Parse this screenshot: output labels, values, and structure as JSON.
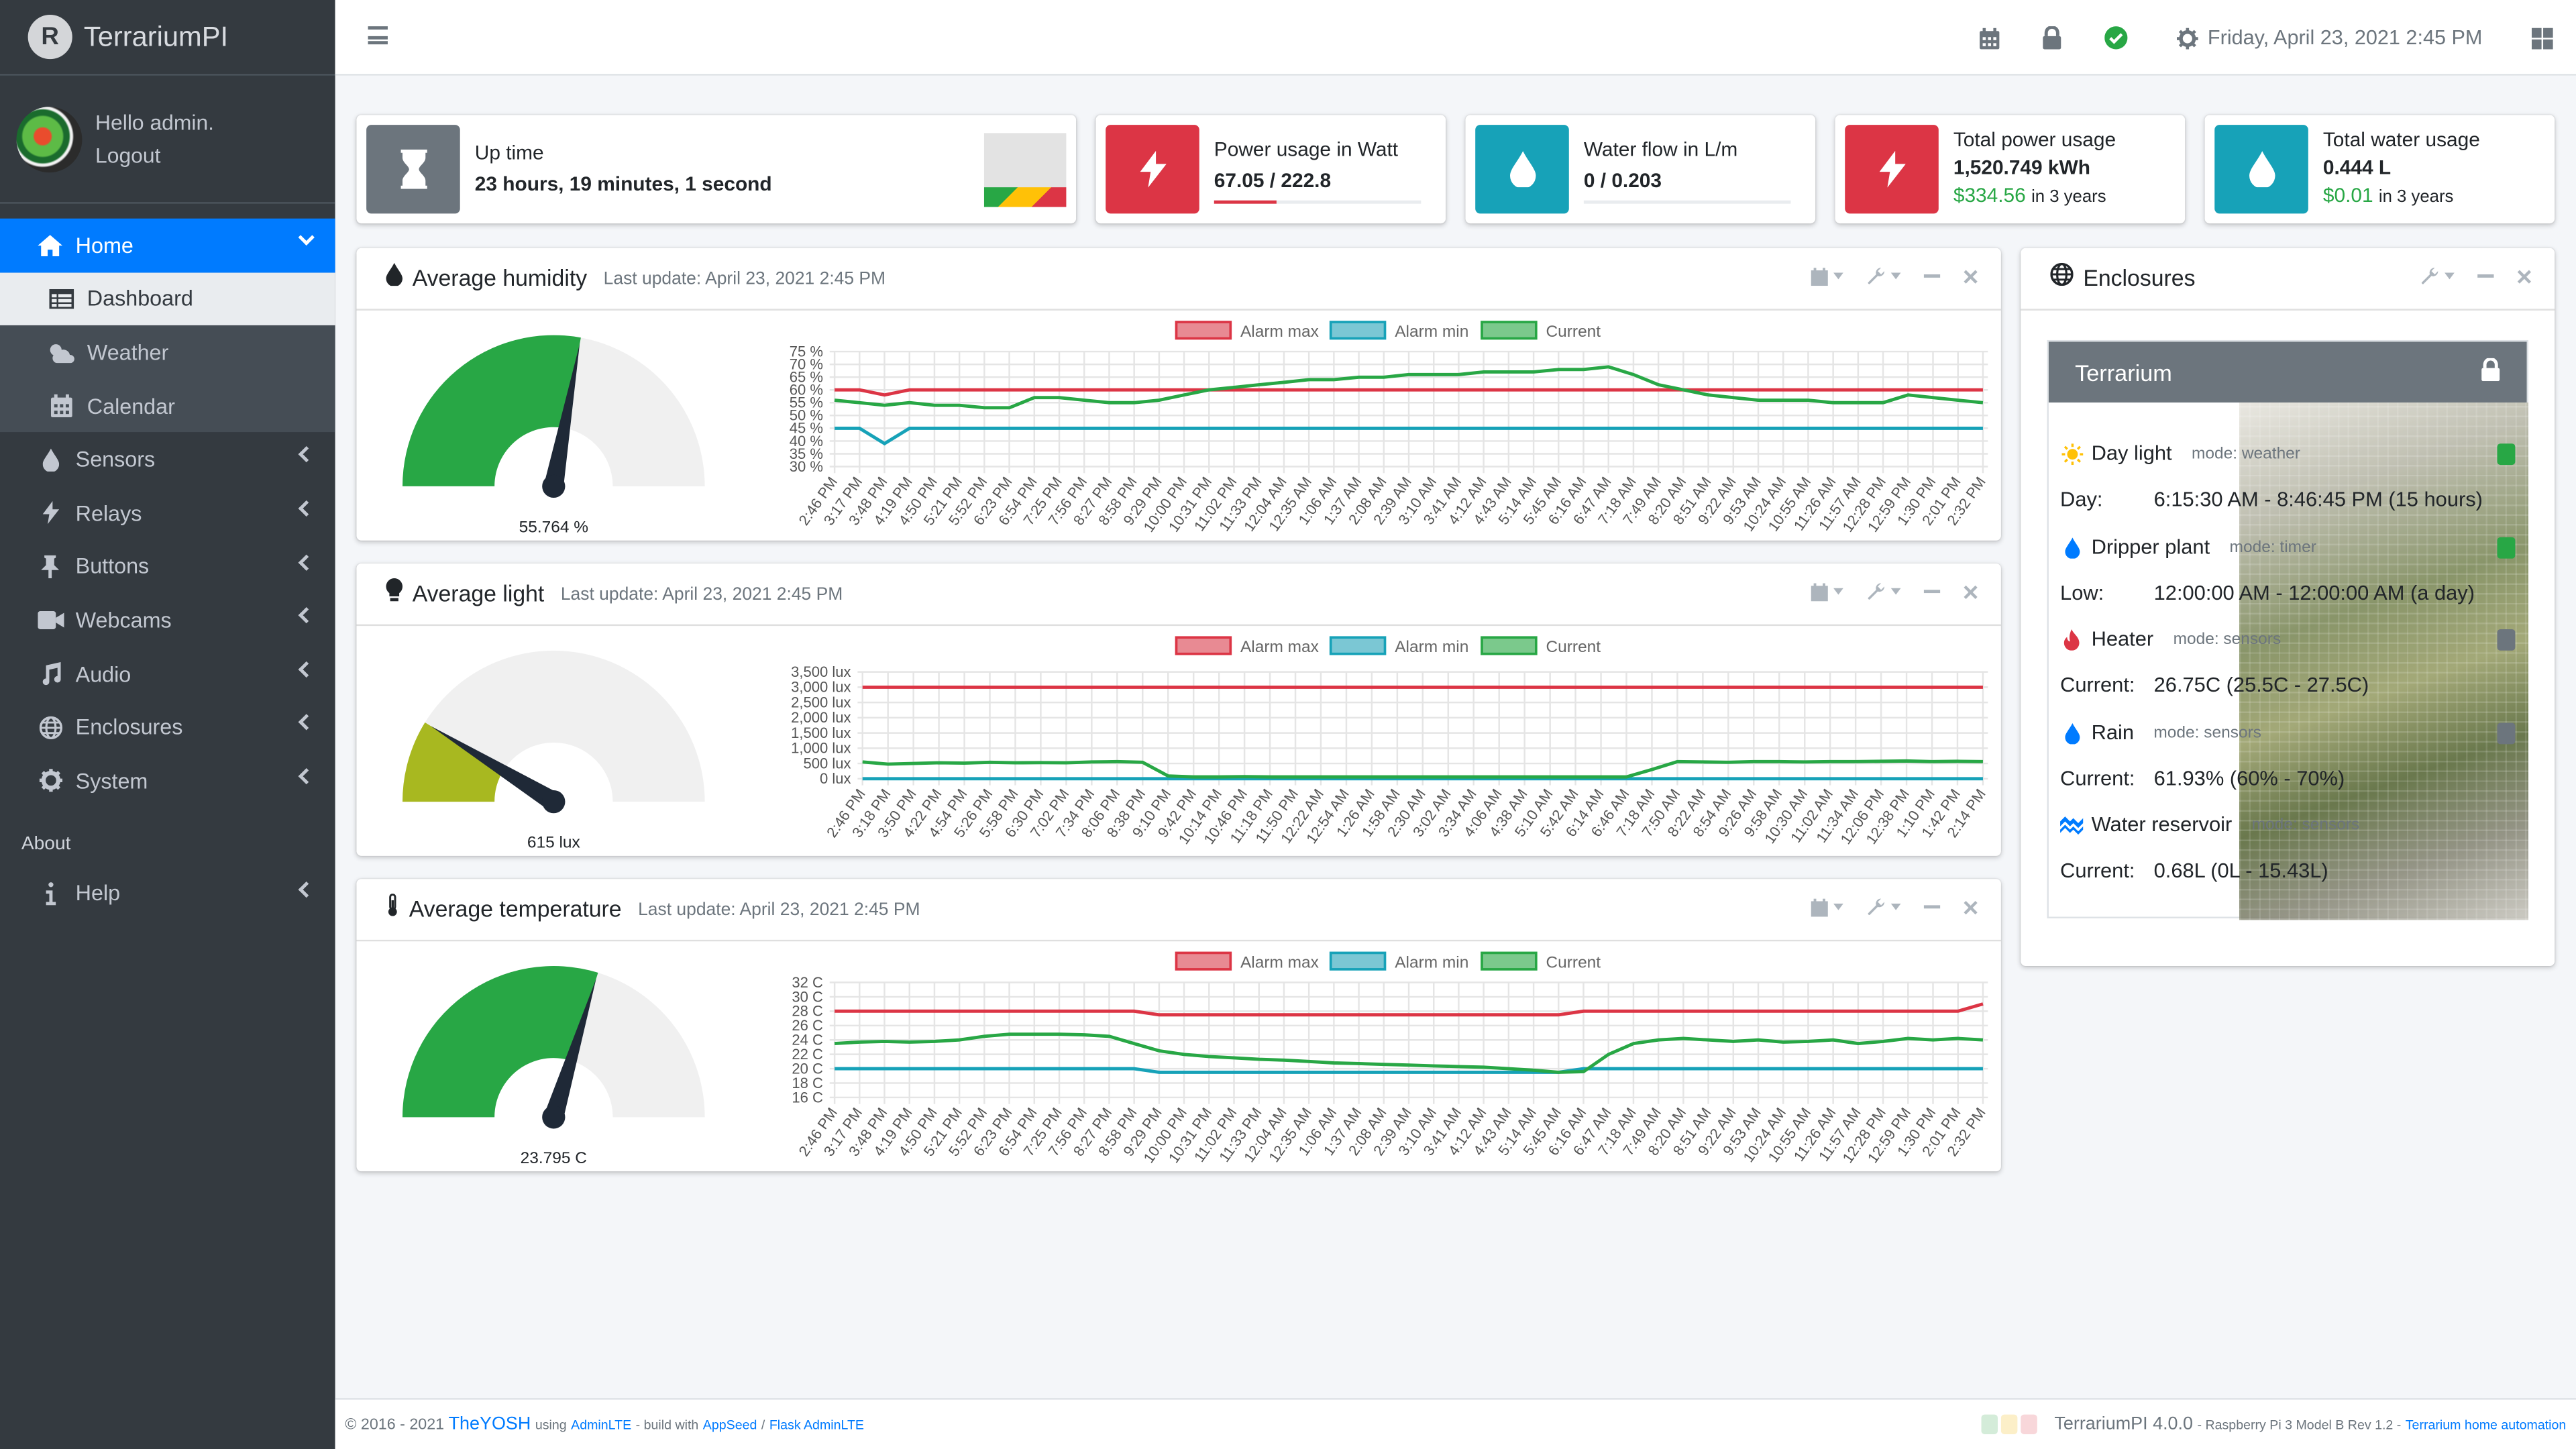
{
  "app": {
    "name": "TerrariumPI",
    "logo_letter": "R"
  },
  "user": {
    "greeting": "Hello admin.",
    "logout": "Logout"
  },
  "sidebar": {
    "home": "Home",
    "sub": [
      {
        "label": "Dashboard"
      },
      {
        "label": "Weather"
      },
      {
        "label": "Calendar"
      }
    ],
    "items": [
      {
        "label": "Sensors"
      },
      {
        "label": "Relays"
      },
      {
        "label": "Buttons"
      },
      {
        "label": "Webcams"
      },
      {
        "label": "Audio"
      },
      {
        "label": "Enclosures"
      },
      {
        "label": "System"
      }
    ],
    "about_header": "About",
    "help": "Help"
  },
  "topbar": {
    "datetime": "Friday, April 23, 2021 2:45 PM"
  },
  "infoboxes": {
    "uptime": {
      "label": "Up time",
      "value": "23 hours, 19 minutes, 1 second"
    },
    "power": {
      "label": "Power usage in Watt",
      "value": "67.05 / 222.8",
      "fraction": 0.3
    },
    "water": {
      "label": "Water flow in L/m",
      "value": "0 / 0.203",
      "fraction": 0
    },
    "total_power": {
      "label": "Total power usage",
      "value": "1,520.749 kWh",
      "cost": "$334.56",
      "period": "in 3 years"
    },
    "total_water": {
      "label": "Total water usage",
      "value": "0.444 L",
      "cost": "$0.01",
      "period": "in 3 years"
    }
  },
  "legend": {
    "max": "Alarm max",
    "min": "Alarm min",
    "current": "Current"
  },
  "colors": {
    "red": "#dc3545",
    "teal": "#17a2b8",
    "green": "#28a745",
    "primary": "#007bff",
    "olive": "#a8b820"
  },
  "chart_data": [
    {
      "type": "line",
      "title": "Average humidity",
      "subtitle": "Last update: April 23, 2021 2:45 PM",
      "gauge_value": 55.764,
      "gauge_max": 100,
      "gauge_label": "55.764 %",
      "y_ticks": [
        "75 %",
        "70 %",
        "65 %",
        "60 %",
        "55 %",
        "50 %",
        "45 %",
        "40 %",
        "35 %",
        "30 %"
      ],
      "ylim": [
        30,
        75
      ],
      "x_ticks": [
        "2:46 PM",
        "3:17 PM",
        "3:48 PM",
        "4:19 PM",
        "4:50 PM",
        "5:21 PM",
        "5:52 PM",
        "6:23 PM",
        "6:54 PM",
        "7:25 PM",
        "7:56 PM",
        "8:27 PM",
        "8:58 PM",
        "9:29 PM",
        "10:00 PM",
        "10:31 PM",
        "11:02 PM",
        "11:33 PM",
        "12:04 AM",
        "12:35 AM",
        "1:06 AM",
        "1:37 AM",
        "2:08 AM",
        "2:39 AM",
        "3:10 AM",
        "3:41 AM",
        "4:12 AM",
        "4:43 AM",
        "5:14 AM",
        "5:45 AM",
        "6:16 AM",
        "6:47 AM",
        "7:18 AM",
        "7:49 AM",
        "8:20 AM",
        "8:51 AM",
        "9:22 AM",
        "9:53 AM",
        "10:24 AM",
        "10:55 AM",
        "11:26 AM",
        "11:57 AM",
        "12:28 PM",
        "12:59 PM",
        "1:30 PM",
        "2:01 PM",
        "2:32 PM"
      ],
      "series": [
        {
          "name": "Alarm max",
          "values": [
            60,
            60,
            58,
            60,
            60,
            60,
            60,
            60,
            60,
            60,
            60,
            60,
            60,
            60,
            60,
            60,
            60,
            60,
            60,
            60,
            60,
            60,
            60,
            60,
            60,
            60,
            60,
            60,
            60,
            60,
            60,
            60,
            60,
            60,
            60,
            60,
            60,
            60,
            60,
            60,
            60,
            60,
            60,
            60,
            60,
            60,
            60
          ]
        },
        {
          "name": "Alarm min",
          "values": [
            45,
            45,
            39,
            45,
            45,
            45,
            45,
            45,
            45,
            45,
            45,
            45,
            45,
            45,
            45,
            45,
            45,
            45,
            45,
            45,
            45,
            45,
            45,
            45,
            45,
            45,
            45,
            45,
            45,
            45,
            45,
            45,
            45,
            45,
            45,
            45,
            45,
            45,
            45,
            45,
            45,
            45,
            45,
            45,
            45,
            45,
            45
          ]
        },
        {
          "name": "Current",
          "values": [
            56,
            55,
            54,
            55,
            54,
            54,
            53,
            53,
            57,
            57,
            56,
            55,
            55,
            56,
            58,
            60,
            61,
            62,
            63,
            64,
            64,
            65,
            65,
            66,
            66,
            66,
            67,
            67,
            67,
            68,
            68,
            69,
            66,
            62,
            60,
            58,
            57,
            56,
            56,
            56,
            55,
            55,
            55,
            58,
            57,
            56,
            55
          ]
        }
      ]
    },
    {
      "type": "line",
      "title": "Average light",
      "subtitle": "Last update: April 23, 2021 2:45 PM",
      "gauge_value": 615,
      "gauge_max": 3500,
      "gauge_label": "615 lux",
      "y_ticks": [
        "3,500 lux",
        "3,000 lux",
        "2,500 lux",
        "2,000 lux",
        "1,500 lux",
        "1,000 lux",
        "500 lux",
        "0 lux"
      ],
      "ylim": [
        0,
        3500
      ],
      "x_ticks": [
        "2:46 PM",
        "3:18 PM",
        "3:50 PM",
        "4:22 PM",
        "4:54 PM",
        "5:26 PM",
        "5:58 PM",
        "6:30 PM",
        "7:02 PM",
        "7:34 PM",
        "8:06 PM",
        "8:38 PM",
        "9:10 PM",
        "9:42 PM",
        "10:14 PM",
        "10:46 PM",
        "11:18 PM",
        "11:50 PM",
        "12:22 AM",
        "12:54 AM",
        "1:26 AM",
        "1:58 AM",
        "2:30 AM",
        "3:02 AM",
        "3:34 AM",
        "4:06 AM",
        "4:38 AM",
        "5:10 AM",
        "5:42 AM",
        "6:14 AM",
        "6:46 AM",
        "7:18 AM",
        "7:50 AM",
        "8:22 AM",
        "8:54 AM",
        "9:26 AM",
        "9:58 AM",
        "10:30 AM",
        "11:02 AM",
        "11:34 AM",
        "12:06 PM",
        "12:38 PM",
        "1:10 PM",
        "1:42 PM",
        "2:14 PM"
      ],
      "series": [
        {
          "name": "Alarm max",
          "values": [
            3000,
            3000,
            3000,
            3000,
            3000,
            3000,
            3000,
            3000,
            3000,
            3000,
            3000,
            3000,
            3000,
            3000,
            3000,
            3000,
            3000,
            3000,
            3000,
            3000,
            3000,
            3000,
            3000,
            3000,
            3000,
            3000,
            3000,
            3000,
            3000,
            3000,
            3000,
            3000,
            3000,
            3000,
            3000,
            3000,
            3000,
            3000,
            3000,
            3000,
            3000,
            3000,
            3000,
            3000,
            3000
          ]
        },
        {
          "name": "Alarm min",
          "values": [
            0,
            0,
            0,
            0,
            0,
            0,
            0,
            0,
            0,
            0,
            0,
            0,
            0,
            0,
            0,
            0,
            0,
            0,
            0,
            0,
            0,
            0,
            0,
            0,
            0,
            0,
            0,
            0,
            0,
            0,
            0,
            0,
            0,
            0,
            0,
            0,
            0,
            0,
            0,
            0,
            0,
            0,
            0,
            0,
            0
          ]
        },
        {
          "name": "Current",
          "values": [
            550,
            480,
            500,
            520,
            510,
            540,
            520,
            530,
            520,
            550,
            560,
            540,
            90,
            60,
            60,
            70,
            60,
            60,
            60,
            60,
            60,
            60,
            60,
            60,
            60,
            60,
            60,
            60,
            60,
            60,
            60,
            300,
            560,
            550,
            540,
            560,
            560,
            550,
            560,
            560,
            570,
            580,
            560,
            570,
            560
          ]
        }
      ]
    },
    {
      "type": "line",
      "title": "Average temperature",
      "subtitle": "Last update: April 23, 2021 2:45 PM",
      "gauge_value": 23.795,
      "gauge_max": 40,
      "gauge_label": "23.795 C",
      "y_ticks": [
        "32 C",
        "30 C",
        "28 C",
        "26 C",
        "24 C",
        "22 C",
        "20 C",
        "18 C",
        "16 C"
      ],
      "ylim": [
        16,
        32
      ],
      "x_ticks": [
        "2:46 PM",
        "3:17 PM",
        "3:48 PM",
        "4:19 PM",
        "4:50 PM",
        "5:21 PM",
        "5:52 PM",
        "6:23 PM",
        "6:54 PM",
        "7:25 PM",
        "7:56 PM",
        "8:27 PM",
        "8:58 PM",
        "9:29 PM",
        "10:00 PM",
        "10:31 PM",
        "11:02 PM",
        "11:33 PM",
        "12:04 AM",
        "12:35 AM",
        "1:06 AM",
        "1:37 AM",
        "2:08 AM",
        "2:39 AM",
        "3:10 AM",
        "3:41 AM",
        "4:12 AM",
        "4:43 AM",
        "5:14 AM",
        "5:45 AM",
        "6:16 AM",
        "6:47 AM",
        "7:18 AM",
        "7:49 AM",
        "8:20 AM",
        "8:51 AM",
        "9:22 AM",
        "9:53 AM",
        "10:24 AM",
        "10:55 AM",
        "11:26 AM",
        "11:57 AM",
        "12:28 PM",
        "12:59 PM",
        "1:30 PM",
        "2:01 PM",
        "2:32 PM"
      ],
      "series": [
        {
          "name": "Alarm max",
          "values": [
            28,
            28,
            28,
            28,
            28,
            28,
            28,
            28,
            28,
            28,
            28,
            28,
            28,
            27.5,
            27.5,
            27.5,
            27.5,
            27.5,
            27.5,
            27.5,
            27.5,
            27.5,
            27.5,
            27.5,
            27.5,
            27.5,
            27.5,
            27.5,
            27.5,
            27.5,
            28,
            28,
            28,
            28,
            28,
            28,
            28,
            28,
            28,
            28,
            28,
            28,
            28,
            28,
            28,
            28,
            29
          ]
        },
        {
          "name": "Alarm min",
          "values": [
            20,
            20,
            20,
            20,
            20,
            20,
            20,
            20,
            20,
            20,
            20,
            20,
            20,
            19.5,
            19.5,
            19.5,
            19.5,
            19.5,
            19.5,
            19.5,
            19.5,
            19.5,
            19.5,
            19.5,
            19.5,
            19.5,
            19.5,
            19.5,
            19.5,
            19.5,
            20,
            20,
            20,
            20,
            20,
            20,
            20,
            20,
            20,
            20,
            20,
            20,
            20,
            20,
            20,
            20,
            20
          ]
        },
        {
          "name": "Current",
          "values": [
            23.5,
            23.7,
            23.8,
            23.7,
            23.8,
            24,
            24.5,
            24.8,
            24.8,
            24.8,
            24.7,
            24.5,
            23.5,
            22.5,
            22,
            21.7,
            21.5,
            21.3,
            21.2,
            21,
            20.8,
            20.7,
            20.6,
            20.5,
            20.4,
            20.3,
            20.2,
            20,
            19.8,
            19.5,
            19.6,
            22,
            23.5,
            24,
            24.2,
            24,
            23.8,
            24,
            23.7,
            23.8,
            24,
            23.5,
            23.8,
            24.2,
            24,
            24.2,
            24
          ]
        }
      ]
    }
  ],
  "enclosures": {
    "title": "Enclosures",
    "terrarium": "Terrarium",
    "rows": [
      {
        "name": "Day light",
        "mode": "mode: weather",
        "label": "Day:",
        "value": "6:15:30 AM - 8:46:45 PM (15 hours)",
        "on": true
      },
      {
        "name": "Dripper plant",
        "mode": "mode: timer",
        "label": "Low:",
        "value": "12:00:00 AM - 12:00:00 AM (a day)",
        "on": true
      },
      {
        "name": "Heater",
        "mode": "mode: sensors",
        "label": "Current:",
        "value": "26.75C (25.5C - 27.5C)",
        "on": false
      },
      {
        "name": "Rain",
        "mode": "mode: sensors",
        "label": "Current:",
        "value": "61.93% (60% - 70%)",
        "on": false
      },
      {
        "name": "Water reservoir",
        "mode": "mode: sensors",
        "label": "Current:",
        "value": "0.68L (0L - 15.43L)",
        "on": false
      }
    ]
  },
  "footer": {
    "copy": "© 2016 - 2021",
    "author": "TheYOSH",
    "using": "using",
    "adminlte": "AdminLTE",
    "build": "- build with",
    "appseed": "AppSeed",
    "slash": "/",
    "flask": "Flask AdminLTE",
    "version": "TerrariumPI 4.0.0",
    "hw": "- Raspberry Pi 3 Model B Rev 1.2 -",
    "tagline": "Terrarium home automation"
  }
}
